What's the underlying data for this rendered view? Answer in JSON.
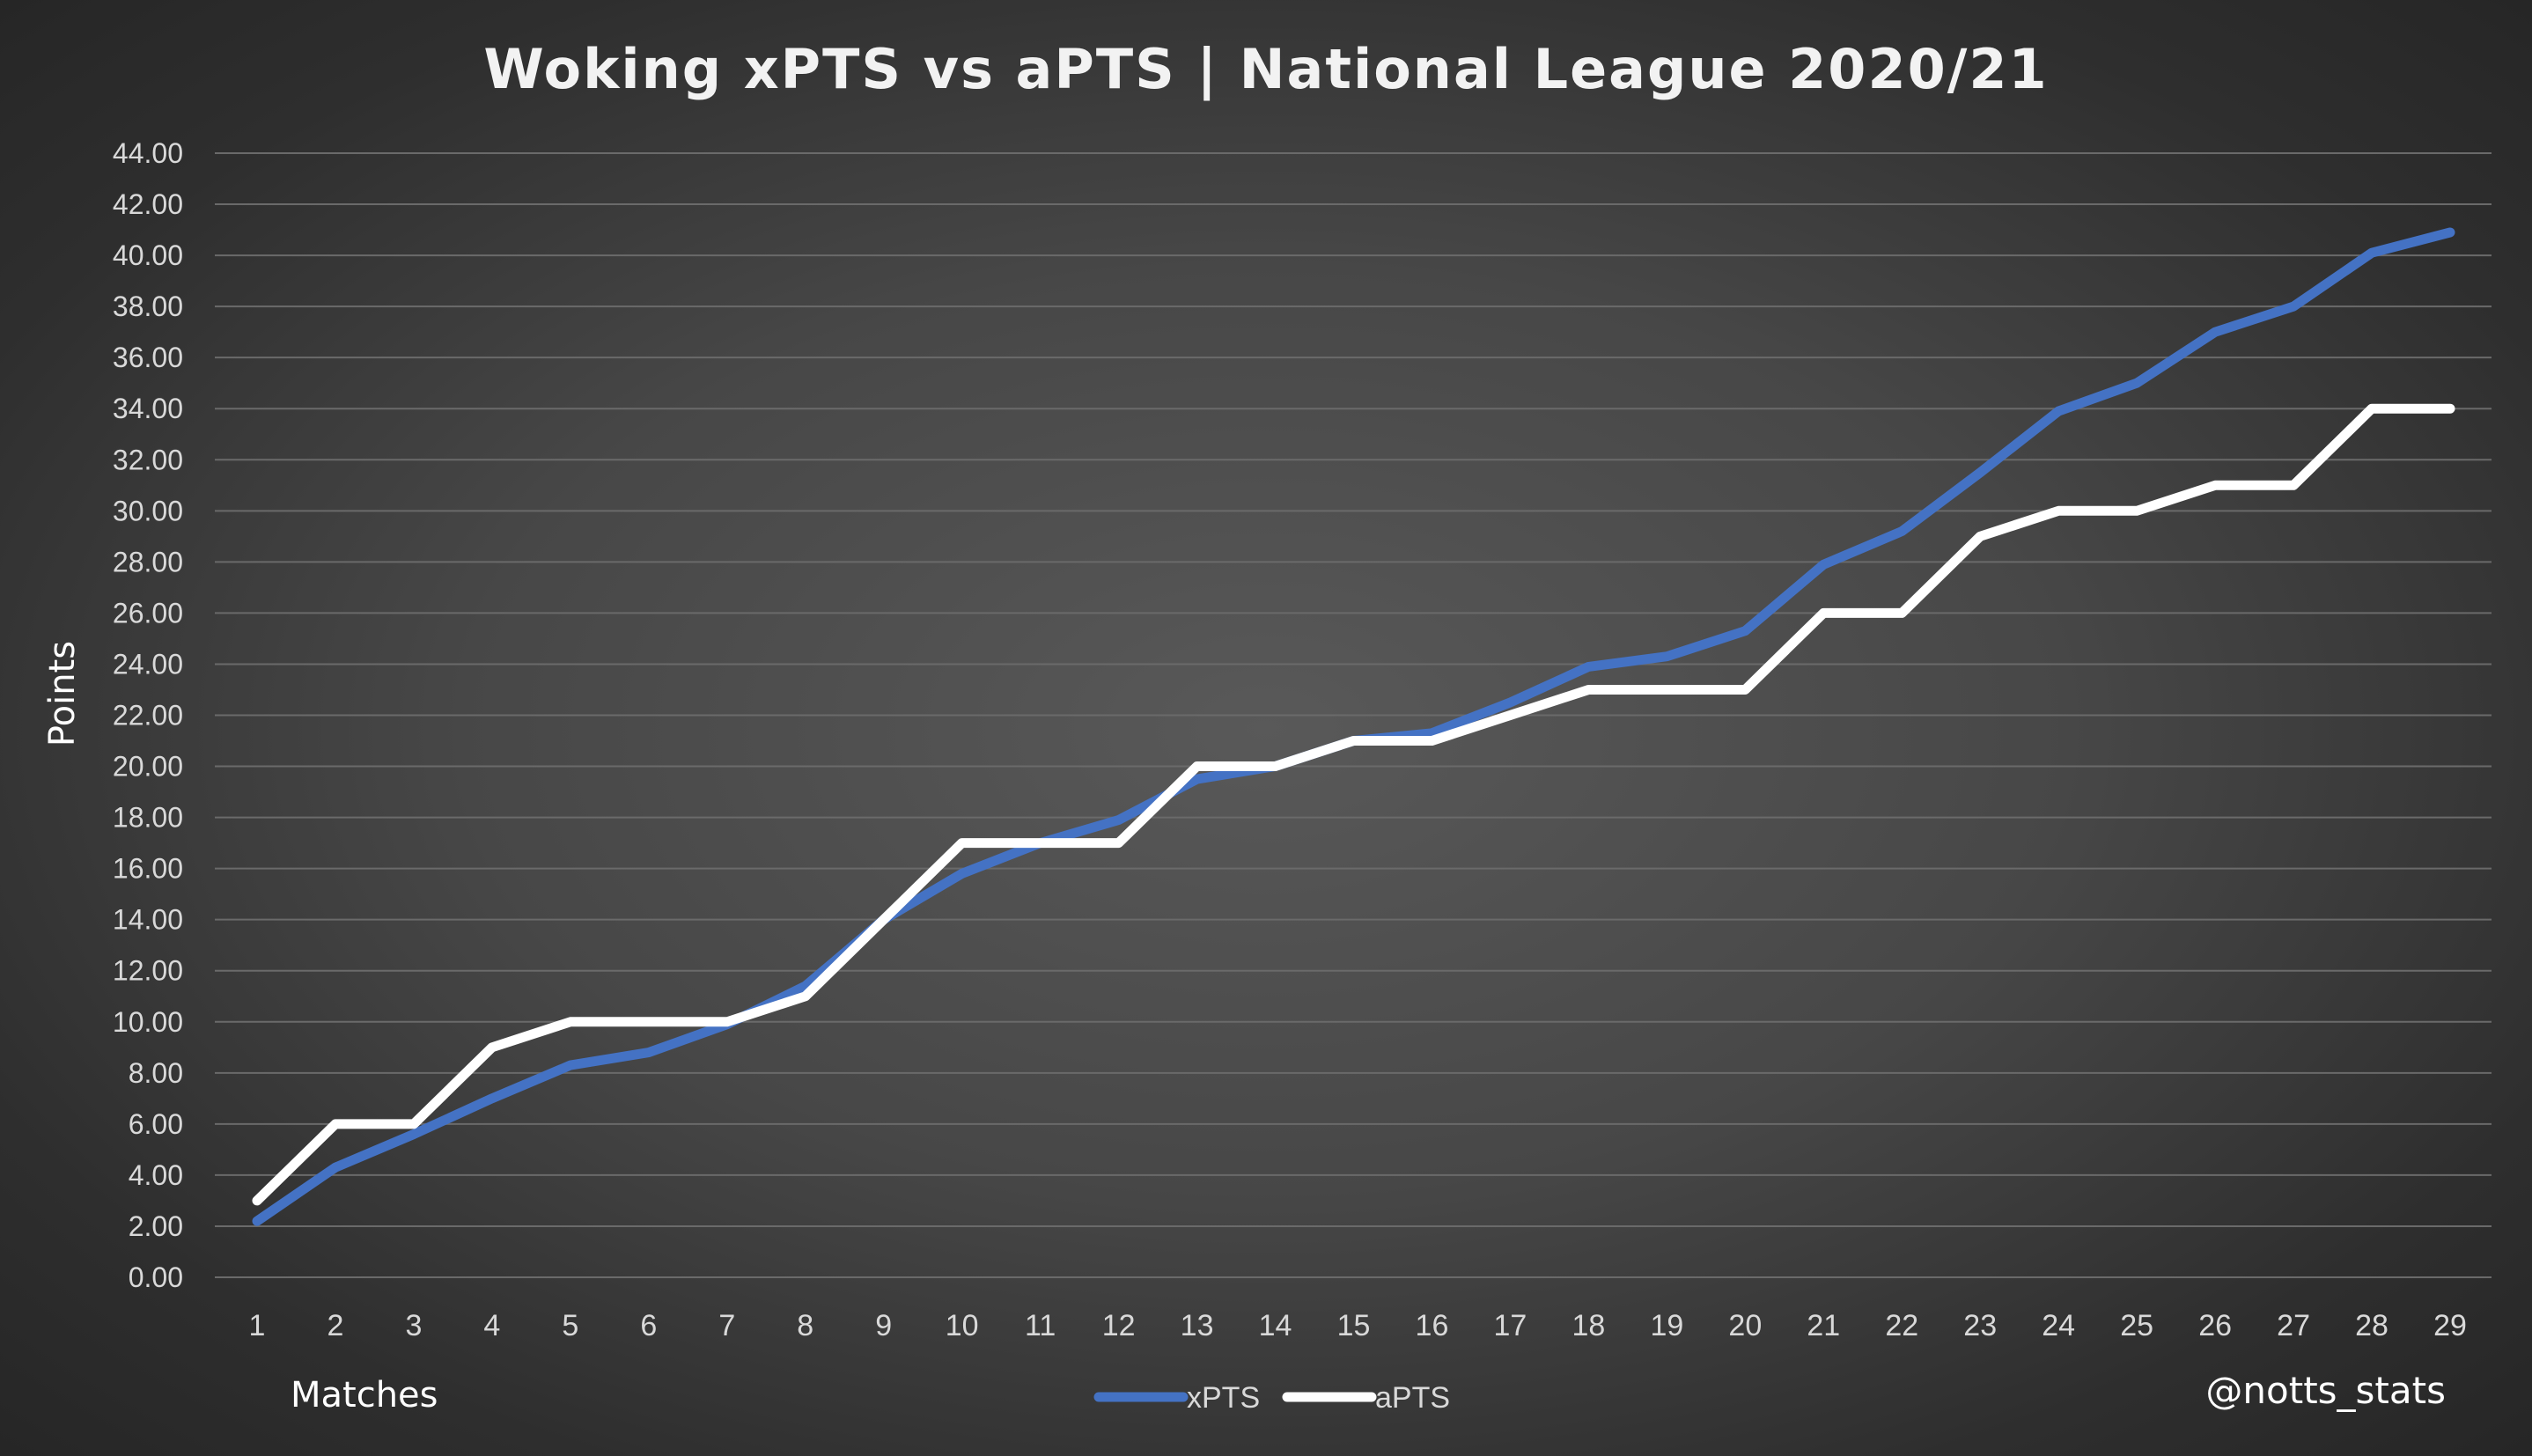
{
  "chart_data": {
    "type": "line",
    "title": "Woking xPTS vs aPTS | National League 2020/21",
    "xlabel": "Matches",
    "ylabel": "Points",
    "ylim": [
      0,
      44
    ],
    "ytick_step": 2,
    "ytick_decimals": 2,
    "x": [
      1,
      2,
      3,
      4,
      5,
      6,
      7,
      8,
      9,
      10,
      11,
      12,
      13,
      14,
      15,
      16,
      17,
      18,
      19,
      20,
      21,
      22,
      23,
      24,
      25,
      26,
      27,
      28,
      29
    ],
    "series": [
      {
        "name": "xPTS",
        "color": "#4472c4",
        "values": [
          2.2,
          4.3,
          5.6,
          7.0,
          8.3,
          8.8,
          9.9,
          11.4,
          14.0,
          15.8,
          17.0,
          17.9,
          19.5,
          20.0,
          21.0,
          21.3,
          22.5,
          23.9,
          24.3,
          25.3,
          27.9,
          29.2,
          31.5,
          33.9,
          35.0,
          37.0,
          38.0,
          40.1,
          40.9
        ]
      },
      {
        "name": "aPTS",
        "color": "#ffffff",
        "values": [
          3,
          6,
          6,
          9,
          10,
          10,
          10,
          11,
          14,
          17,
          17,
          17,
          20,
          20,
          21,
          21,
          22,
          23,
          23,
          23,
          26,
          26,
          29,
          30,
          30,
          31,
          31,
          34,
          34
        ]
      }
    ],
    "grid": true,
    "legend_position": "bottom-center"
  },
  "credit": "@notts_stats"
}
